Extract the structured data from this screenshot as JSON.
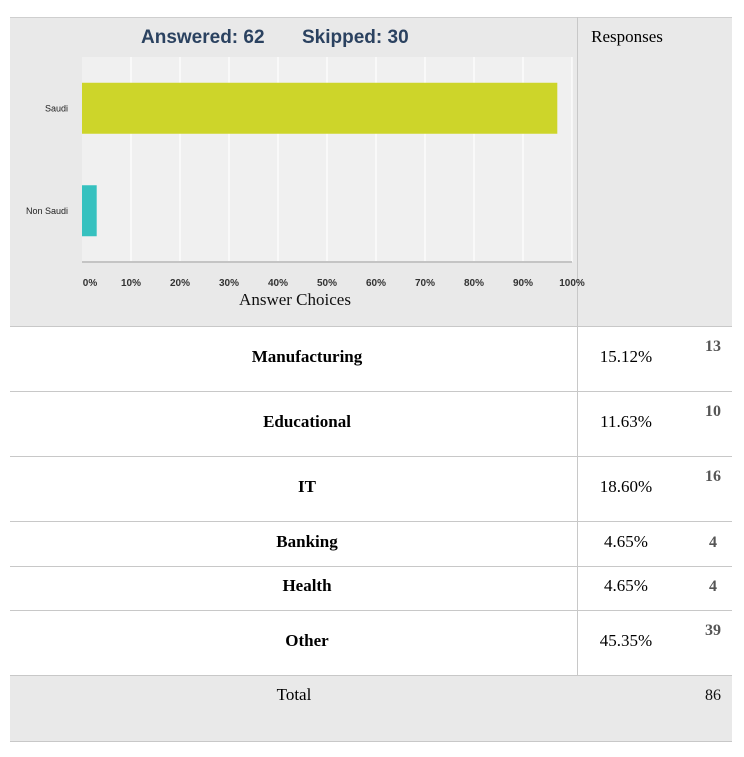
{
  "header": {
    "answered": "Answered: 62",
    "skipped": "Skipped: 30",
    "responses_col": "Responses"
  },
  "chart_data": {
    "type": "bar",
    "orientation": "horizontal",
    "categories": [
      "Saudi",
      "Non Saudi"
    ],
    "values": [
      97,
      3
    ],
    "x_ticks": [
      "0%",
      "10%",
      "20%",
      "30%",
      "40%",
      "50%",
      "60%",
      "70%",
      "80%",
      "90%",
      "100%"
    ],
    "xlim": [
      0,
      100
    ],
    "xlabel": "Answer Choices",
    "colors": [
      "#cdd52a",
      "#36c1bf"
    ],
    "grid": true
  },
  "table": {
    "rows": [
      {
        "label": "Manufacturing",
        "pct": "15.12%",
        "count": "13"
      },
      {
        "label": "Educational",
        "pct": "11.63%",
        "count": "10"
      },
      {
        "label": "IT",
        "pct": "18.60%",
        "count": "16"
      },
      {
        "label": "Banking",
        "pct": "4.65%",
        "count": "4"
      },
      {
        "label": "Health",
        "pct": "4.65%",
        "count": "4"
      },
      {
        "label": "Other",
        "pct": "45.35%",
        "count": "39"
      }
    ],
    "total_label": "Total",
    "total_count": "86"
  }
}
